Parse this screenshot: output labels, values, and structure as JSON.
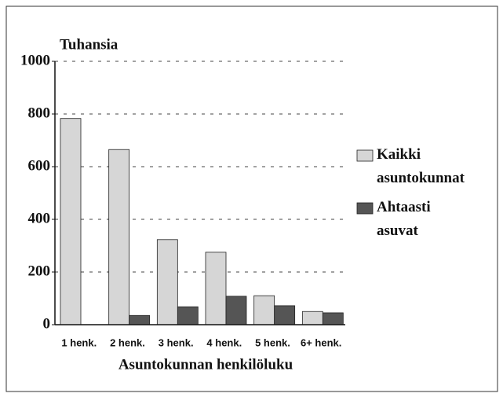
{
  "chart_data": {
    "type": "bar",
    "y_axis_label": "Tuhansia",
    "x_axis_label": "Asuntokunnan henkilöluku",
    "categories": [
      "1 henk.",
      "2 henk.",
      "3 henk.",
      "4 henk.",
      "5 henk.",
      "6+ henk."
    ],
    "series": [
      {
        "name": "Kaikki asuntokunnat",
        "color": "#d6d6d6",
        "values": [
          783,
          665,
          323,
          275,
          110,
          50
        ]
      },
      {
        "name": "Ahtaasti asuvat",
        "color": "#555555",
        "values": [
          0,
          35,
          68,
          108,
          72,
          45
        ]
      }
    ],
    "ylim": [
      0,
      1000
    ],
    "yticks": [
      0,
      200,
      400,
      600,
      800,
      1000
    ],
    "grid": true,
    "legend": "right"
  }
}
